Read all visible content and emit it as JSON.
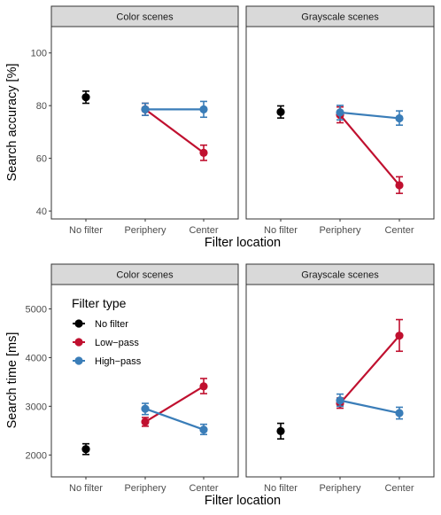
{
  "chart_data": [
    {
      "type": "line",
      "title": "",
      "xlabel": "Filter location",
      "ylabel": "Search accuracy [%]",
      "categories": [
        "No filter",
        "Periphery",
        "Center"
      ],
      "ylim": [
        37,
        110
      ],
      "yticks": [
        40,
        60,
        80,
        100
      ],
      "grid": false,
      "panels": [
        {
          "label": "Color scenes",
          "series": [
            {
              "name": "No filter",
              "color": "#000000",
              "points": [
                {
                  "x": "No filter",
                  "y": 83.2,
                  "lo": 80.9,
                  "hi": 85.5
                }
              ]
            },
            {
              "name": "Low−pass",
              "color": "#c0102f",
              "points": [
                {
                  "x": "Periphery",
                  "y": 78.6,
                  "lo": 76.3,
                  "hi": 80.9
                },
                {
                  "x": "Center",
                  "y": 62.1,
                  "lo": 59.2,
                  "hi": 65.0
                }
              ]
            },
            {
              "name": "High−pass",
              "color": "#3a7db8",
              "points": [
                {
                  "x": "Periphery",
                  "y": 78.6,
                  "lo": 76.3,
                  "hi": 80.9
                },
                {
                  "x": "Center",
                  "y": 78.6,
                  "lo": 75.6,
                  "hi": 81.6
                }
              ]
            }
          ]
        },
        {
          "label": "Grayscale scenes",
          "series": [
            {
              "name": "No filter",
              "color": "#000000",
              "points": [
                {
                  "x": "No filter",
                  "y": 77.6,
                  "lo": 75.3,
                  "hi": 79.9
                }
              ]
            },
            {
              "name": "Low−pass",
              "color": "#c0102f",
              "points": [
                {
                  "x": "Periphery",
                  "y": 76.5,
                  "lo": 73.5,
                  "hi": 79.5
                },
                {
                  "x": "Center",
                  "y": 49.8,
                  "lo": 46.7,
                  "hi": 53.0
                }
              ]
            },
            {
              "name": "High−pass",
              "color": "#3a7db8",
              "points": [
                {
                  "x": "Periphery",
                  "y": 77.4,
                  "lo": 74.6,
                  "hi": 80.1
                },
                {
                  "x": "Center",
                  "y": 75.2,
                  "lo": 72.6,
                  "hi": 78.0
                }
              ]
            }
          ]
        }
      ]
    },
    {
      "type": "line",
      "title": "",
      "xlabel": "Filter location",
      "ylabel": "Search time [ms]",
      "categories": [
        "No filter",
        "Periphery",
        "Center"
      ],
      "ylim": [
        1550,
        5500
      ],
      "yticks": [
        2000,
        3000,
        4000,
        5000
      ],
      "grid": false,
      "legend": {
        "title": "Filter type",
        "placement": "top-left",
        "entries": [
          {
            "label": "No filter",
            "color": "#000000"
          },
          {
            "label": "Low−pass",
            "color": "#c0102f"
          },
          {
            "label": "High−pass",
            "color": "#3a7db8"
          }
        ]
      },
      "panels": [
        {
          "label": "Color scenes",
          "series": [
            {
              "name": "No filter",
              "color": "#000000",
              "points": [
                {
                  "x": "No filter",
                  "y": 2120,
                  "lo": 2010,
                  "hi": 2230
                }
              ]
            },
            {
              "name": "Low−pass",
              "color": "#c0102f",
              "points": [
                {
                  "x": "Periphery",
                  "y": 2680,
                  "lo": 2590,
                  "hi": 2770
                },
                {
                  "x": "Center",
                  "y": 3410,
                  "lo": 3260,
                  "hi": 3570
                }
              ]
            },
            {
              "name": "High−pass",
              "color": "#3a7db8",
              "points": [
                {
                  "x": "Periphery",
                  "y": 2950,
                  "lo": 2830,
                  "hi": 3060
                },
                {
                  "x": "Center",
                  "y": 2520,
                  "lo": 2420,
                  "hi": 2630
                }
              ]
            }
          ]
        },
        {
          "label": "Grayscale scenes",
          "series": [
            {
              "name": "No filter",
              "color": "#000000",
              "points": [
                {
                  "x": "No filter",
                  "y": 2490,
                  "lo": 2330,
                  "hi": 2650
                }
              ]
            },
            {
              "name": "Low−pass",
              "color": "#c0102f",
              "points": [
                {
                  "x": "Periphery",
                  "y": 3060,
                  "lo": 2960,
                  "hi": 3170
                },
                {
                  "x": "Center",
                  "y": 4450,
                  "lo": 4130,
                  "hi": 4780
                }
              ]
            },
            {
              "name": "High−pass",
              "color": "#3a7db8",
              "points": [
                {
                  "x": "Periphery",
                  "y": 3120,
                  "lo": 3000,
                  "hi": 3250
                },
                {
                  "x": "Center",
                  "y": 2860,
                  "lo": 2740,
                  "hi": 2980
                }
              ]
            }
          ]
        }
      ]
    }
  ]
}
